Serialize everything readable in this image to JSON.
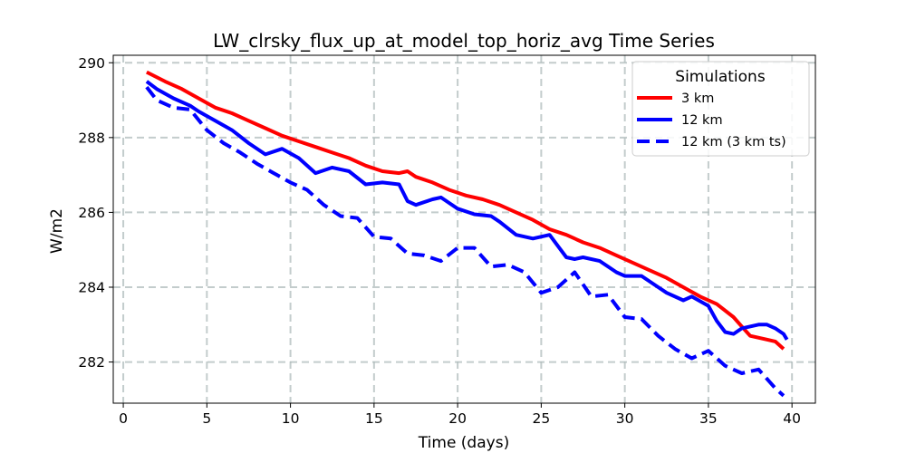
{
  "chart_data": {
    "type": "line",
    "title": "LW_clrsky_flux_up_at_model_top_horiz_avg Time Series",
    "xlabel": "Time (days)",
    "ylabel": "W/m2",
    "xlim": [
      -0.6,
      41.4
    ],
    "ylim": [
      280.9,
      290.2
    ],
    "xticks": [
      0,
      5,
      10,
      15,
      20,
      25,
      30,
      35,
      40
    ],
    "yticks": [
      282,
      284,
      286,
      288,
      290
    ],
    "grid": true,
    "legend": {
      "title": "Simulations",
      "position": "top-right"
    },
    "series": [
      {
        "name": "3 km",
        "color": "#ff0000",
        "style": "solid",
        "points": [
          [
            1.4,
            289.75
          ],
          [
            2.5,
            289.5
          ],
          [
            3.5,
            289.3
          ],
          [
            4.5,
            289.05
          ],
          [
            5.5,
            288.8
          ],
          [
            6.5,
            288.65
          ],
          [
            7.5,
            288.45
          ],
          [
            8.5,
            288.25
          ],
          [
            9.5,
            288.05
          ],
          [
            10.5,
            287.9
          ],
          [
            11.5,
            287.75
          ],
          [
            12.5,
            287.6
          ],
          [
            13.5,
            287.45
          ],
          [
            14.5,
            287.25
          ],
          [
            15.5,
            287.1
          ],
          [
            16.5,
            287.05
          ],
          [
            17,
            287.1
          ],
          [
            17.5,
            286.95
          ],
          [
            18.5,
            286.8
          ],
          [
            19.5,
            286.6
          ],
          [
            20.5,
            286.45
          ],
          [
            21.5,
            286.35
          ],
          [
            22.5,
            286.2
          ],
          [
            23.5,
            286.0
          ],
          [
            24.5,
            285.8
          ],
          [
            25.5,
            285.55
          ],
          [
            26.5,
            285.4
          ],
          [
            27.5,
            285.2
          ],
          [
            28.5,
            285.05
          ],
          [
            29.5,
            284.85
          ],
          [
            30.5,
            284.65
          ],
          [
            31.5,
            284.45
          ],
          [
            32.5,
            284.25
          ],
          [
            33.5,
            284.0
          ],
          [
            34.5,
            283.75
          ],
          [
            35.5,
            283.55
          ],
          [
            36.5,
            283.2
          ],
          [
            37,
            282.95
          ],
          [
            37.5,
            282.7
          ],
          [
            38.5,
            282.6
          ],
          [
            39,
            282.55
          ],
          [
            39.5,
            282.35
          ]
        ]
      },
      {
        "name": "12 km",
        "color": "#0000ff",
        "style": "solid",
        "points": [
          [
            1.4,
            289.5
          ],
          [
            2,
            289.3
          ],
          [
            3,
            289.05
          ],
          [
            4,
            288.85
          ],
          [
            4.5,
            288.7
          ],
          [
            5.5,
            288.45
          ],
          [
            6.5,
            288.2
          ],
          [
            7.5,
            287.85
          ],
          [
            8.5,
            287.55
          ],
          [
            9.5,
            287.7
          ],
          [
            10.5,
            287.45
          ],
          [
            11.5,
            287.05
          ],
          [
            12.5,
            287.2
          ],
          [
            13.5,
            287.1
          ],
          [
            14.5,
            286.75
          ],
          [
            15.5,
            286.8
          ],
          [
            16.5,
            286.75
          ],
          [
            17,
            286.3
          ],
          [
            17.5,
            286.2
          ],
          [
            18.5,
            286.35
          ],
          [
            19,
            286.4
          ],
          [
            19.5,
            286.25
          ],
          [
            20,
            286.1
          ],
          [
            21,
            285.95
          ],
          [
            22,
            285.9
          ],
          [
            22.5,
            285.75
          ],
          [
            23.5,
            285.4
          ],
          [
            24.5,
            285.3
          ],
          [
            25.5,
            285.4
          ],
          [
            26,
            285.1
          ],
          [
            26.5,
            284.8
          ],
          [
            27,
            284.75
          ],
          [
            27.5,
            284.8
          ],
          [
            28.5,
            284.7
          ],
          [
            29.5,
            284.4
          ],
          [
            30,
            284.3
          ],
          [
            31,
            284.3
          ],
          [
            32,
            284.0
          ],
          [
            32.5,
            283.85
          ],
          [
            33.5,
            283.65
          ],
          [
            34,
            283.75
          ],
          [
            35,
            283.5
          ],
          [
            35.5,
            283.1
          ],
          [
            36,
            282.8
          ],
          [
            36.5,
            282.75
          ],
          [
            37,
            282.9
          ],
          [
            38,
            283.0
          ],
          [
            38.5,
            283.0
          ],
          [
            39,
            282.9
          ],
          [
            39.5,
            282.75
          ],
          [
            39.7,
            282.6
          ]
        ]
      },
      {
        "name": "12 km (3 km ts)",
        "color": "#0000ff",
        "style": "dashed",
        "points": [
          [
            1.4,
            289.35
          ],
          [
            2,
            289.0
          ],
          [
            3,
            288.8
          ],
          [
            4,
            288.75
          ],
          [
            5,
            288.2
          ],
          [
            6,
            287.85
          ],
          [
            7,
            287.6
          ],
          [
            8,
            287.3
          ],
          [
            9,
            287.05
          ],
          [
            10,
            286.8
          ],
          [
            11,
            286.6
          ],
          [
            12,
            286.2
          ],
          [
            13,
            285.9
          ],
          [
            14,
            285.85
          ],
          [
            15,
            285.35
          ],
          [
            16,
            285.3
          ],
          [
            17,
            284.9
          ],
          [
            18,
            284.85
          ],
          [
            19,
            284.7
          ],
          [
            20,
            285.05
          ],
          [
            21,
            285.05
          ],
          [
            22,
            284.55
          ],
          [
            23,
            284.6
          ],
          [
            24,
            284.4
          ],
          [
            25,
            283.85
          ],
          [
            26,
            284.0
          ],
          [
            27,
            284.4
          ],
          [
            28,
            283.75
          ],
          [
            29,
            283.8
          ],
          [
            30,
            283.2
          ],
          [
            31,
            283.15
          ],
          [
            32,
            282.7
          ],
          [
            33,
            282.35
          ],
          [
            34,
            282.1
          ],
          [
            35,
            282.3
          ],
          [
            36,
            281.9
          ],
          [
            37,
            281.7
          ],
          [
            38,
            281.8
          ],
          [
            39,
            281.3
          ],
          [
            39.5,
            281.1
          ]
        ]
      }
    ]
  }
}
